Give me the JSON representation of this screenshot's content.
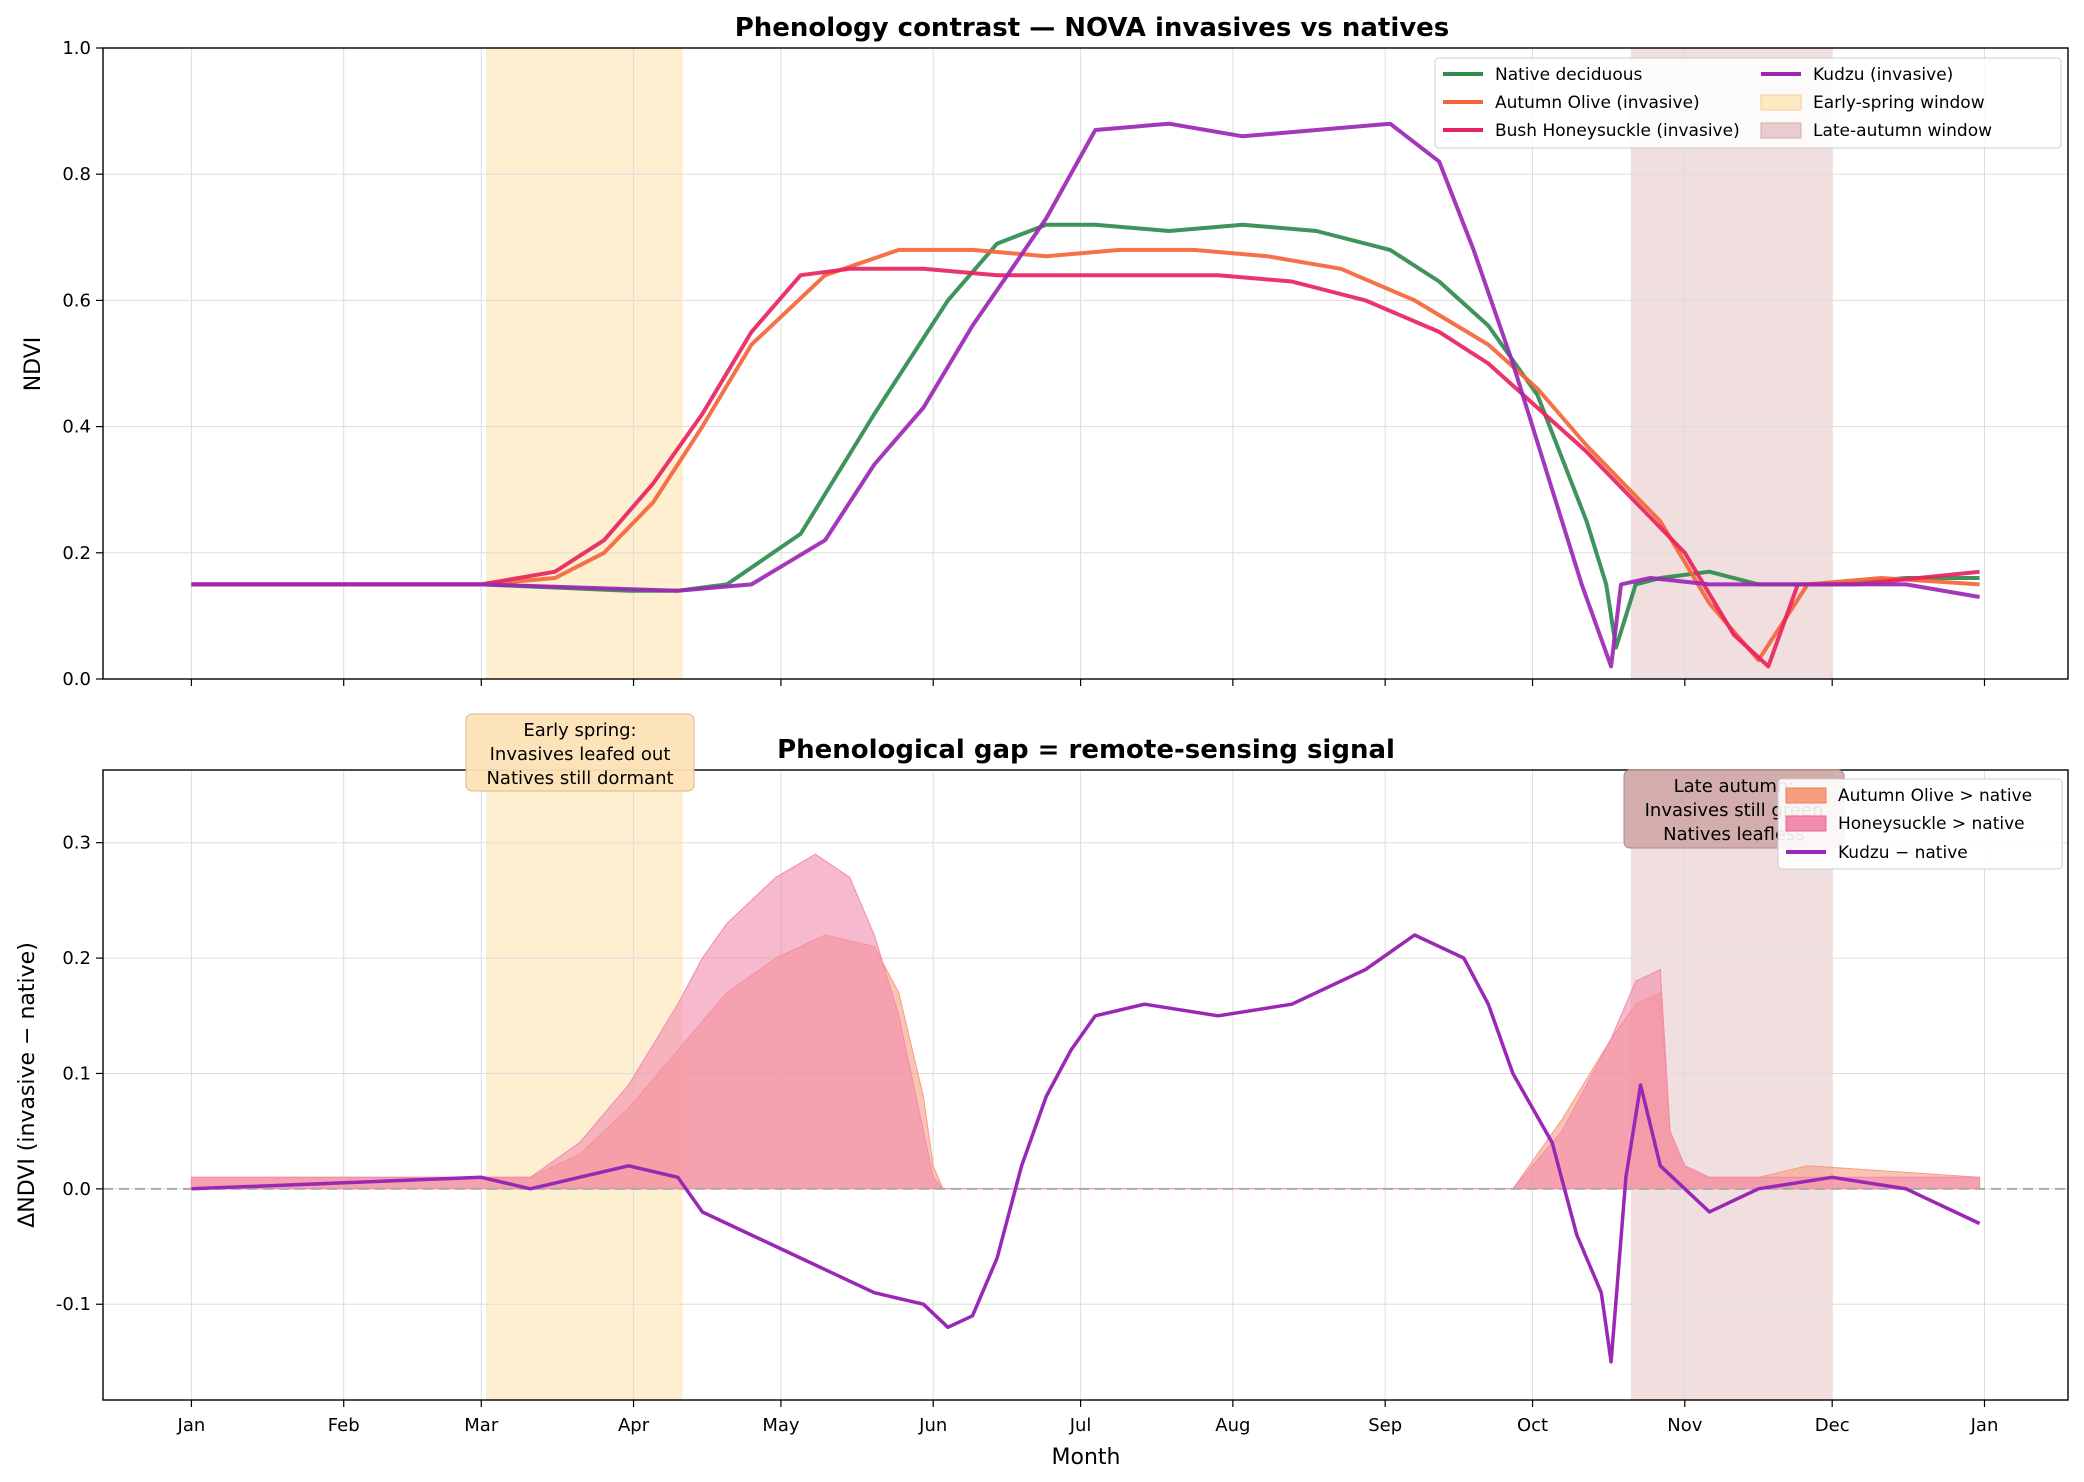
{
  "palette": {
    "native": "#2e8b4e",
    "olive": "#f4663a",
    "honeysuckle": "#e8245e",
    "kudzu": "#9b27b5",
    "early_window": "#fde9c2",
    "late_window": "#e9cdce",
    "olive_fill": "#f79d80",
    "honeysuckle_fill": "#f28bad",
    "zero_line": "#aaaaaa",
    "grid": "#dddddd"
  },
  "chart_data": [
    {
      "id": "top",
      "type": "line",
      "title": "Phenology contrast — NOVA invasives vs natives",
      "xlabel": "",
      "ylabel": "NDVI",
      "x_unit": "day of year (1 = Jan 1, 366 = Jan 1 next year)",
      "xlim": [
        -17,
        383
      ],
      "ylim": [
        0,
        1
      ],
      "y_ticks": [
        0,
        0.2,
        0.4,
        0.6,
        0.8,
        1.0
      ],
      "y_tick_labels": [
        "0.0",
        "0.2",
        "0.4",
        "0.6",
        "0.8",
        "1.0"
      ],
      "grid": true,
      "legend_position": "top-right",
      "legend_columns": 2,
      "shaded_windows": [
        {
          "name": "Early-spring window",
          "start": 61,
          "end": 101
        },
        {
          "name": "Late-autumn window",
          "start": 294,
          "end": 335
        }
      ],
      "series": [
        {
          "name": "Native deciduous",
          "key": "native",
          "x": [
            1,
            60,
            90,
            100,
            110,
            125,
            140,
            155,
            165,
            175,
            185,
            200,
            215,
            230,
            245,
            255,
            265,
            275,
            280,
            285,
            289,
            291,
            295,
            300,
            310,
            320,
            335,
            350,
            365
          ],
          "y": [
            0.15,
            0.15,
            0.14,
            0.14,
            0.15,
            0.23,
            0.42,
            0.6,
            0.69,
            0.72,
            0.72,
            0.71,
            0.72,
            0.71,
            0.68,
            0.63,
            0.56,
            0.45,
            0.35,
            0.25,
            0.15,
            0.05,
            0.15,
            0.16,
            0.17,
            0.15,
            0.15,
            0.16,
            0.16
          ]
        },
        {
          "name": "Autumn Olive (invasive)",
          "key": "olive",
          "x": [
            1,
            60,
            75,
            85,
            95,
            105,
            115,
            130,
            145,
            160,
            175,
            190,
            205,
            220,
            235,
            250,
            265,
            275,
            285,
            295,
            300,
            310,
            320,
            330,
            345,
            365
          ],
          "y": [
            0.15,
            0.15,
            0.16,
            0.2,
            0.28,
            0.4,
            0.53,
            0.64,
            0.68,
            0.68,
            0.67,
            0.68,
            0.68,
            0.67,
            0.65,
            0.6,
            0.53,
            0.46,
            0.37,
            0.29,
            0.25,
            0.12,
            0.03,
            0.15,
            0.16,
            0.15
          ]
        },
        {
          "name": "Bush Honeysuckle (invasive)",
          "key": "honeysuckle",
          "x": [
            1,
            60,
            75,
            85,
            95,
            105,
            115,
            125,
            135,
            150,
            165,
            180,
            195,
            210,
            225,
            240,
            255,
            265,
            275,
            285,
            295,
            305,
            315,
            322,
            328,
            340,
            365
          ],
          "y": [
            0.15,
            0.15,
            0.17,
            0.22,
            0.31,
            0.42,
            0.55,
            0.64,
            0.65,
            0.65,
            0.64,
            0.64,
            0.64,
            0.64,
            0.63,
            0.6,
            0.55,
            0.5,
            0.43,
            0.36,
            0.28,
            0.2,
            0.07,
            0.02,
            0.15,
            0.15,
            0.17
          ]
        },
        {
          "name": "Kudzu (invasive)",
          "key": "kudzu",
          "x": [
            1,
            60,
            100,
            115,
            130,
            140,
            150,
            160,
            168,
            175,
            185,
            200,
            215,
            230,
            245,
            255,
            262,
            270,
            278,
            284,
            290,
            292,
            298,
            310,
            330,
            350,
            365
          ],
          "y": [
            0.15,
            0.15,
            0.14,
            0.15,
            0.22,
            0.34,
            0.43,
            0.56,
            0.65,
            0.73,
            0.87,
            0.88,
            0.86,
            0.87,
            0.88,
            0.82,
            0.68,
            0.5,
            0.3,
            0.15,
            0.02,
            0.15,
            0.16,
            0.15,
            0.15,
            0.15,
            0.13
          ]
        }
      ]
    },
    {
      "id": "bottom",
      "type": "area",
      "title": "Phenological gap = remote-sensing signal",
      "xlabel": "Month",
      "ylabel": "ΔNDVI (invasive − native)",
      "x_unit": "day of year",
      "xlim": [
        -17,
        383
      ],
      "ylim": [
        -0.183,
        0.363
      ],
      "y_ticks": [
        -0.1,
        0.0,
        0.1,
        0.2,
        0.3
      ],
      "y_tick_labels": [
        "-0.1",
        "0.0",
        "0.1",
        "0.2",
        "0.3"
      ],
      "x_ticks": [
        1,
        32,
        60,
        91,
        121,
        152,
        182,
        213,
        244,
        274,
        305,
        335,
        366
      ],
      "x_tick_labels": [
        "Jan",
        "Feb",
        "Mar",
        "Apr",
        "May",
        "Jun",
        "Jul",
        "Aug",
        "Sep",
        "Oct",
        "Nov",
        "Dec",
        "Jan"
      ],
      "grid": true,
      "zero_line": 0,
      "legend_position": "top-right",
      "shaded_windows": [
        {
          "name": "Early-spring window",
          "start": 61,
          "end": 101
        },
        {
          "name": "Late-autumn window",
          "start": 294,
          "end": 335
        }
      ],
      "annotations": [
        {
          "key": "early",
          "lines": [
            "Early spring:",
            "Invasives leafed out",
            "Natives still dormant"
          ]
        },
        {
          "key": "late",
          "lines": [
            "Late autumn:",
            "Invasives still green",
            "Natives leafless"
          ]
        }
      ],
      "series": [
        {
          "name": "Autumn Olive > native",
          "key": "olive_fill",
          "kind": "fill",
          "x": [
            1,
            70,
            80,
            90,
            100,
            110,
            120,
            130,
            140,
            145,
            150,
            152,
            154,
            270,
            280,
            290,
            295,
            300,
            302,
            305,
            310,
            320,
            330,
            365
          ],
          "y": [
            0.01,
            0.01,
            0.03,
            0.07,
            0.12,
            0.17,
            0.2,
            0.22,
            0.21,
            0.17,
            0.08,
            0.02,
            0,
            0,
            0.06,
            0.13,
            0.16,
            0.17,
            0.05,
            0.02,
            0.01,
            0.01,
            0.02,
            0.01
          ]
        },
        {
          "name": "Honeysuckle > native",
          "key": "honeysuckle_fill",
          "kind": "fill",
          "x": [
            1,
            70,
            80,
            90,
            100,
            105,
            110,
            120,
            128,
            135,
            140,
            145,
            150,
            152,
            154,
            270,
            280,
            290,
            295,
            300,
            302,
            305,
            310,
            320,
            330,
            365
          ],
          "y": [
            0.01,
            0.01,
            0.04,
            0.09,
            0.16,
            0.2,
            0.23,
            0.27,
            0.29,
            0.27,
            0.22,
            0.15,
            0.05,
            0.01,
            0,
            0,
            0.05,
            0.13,
            0.18,
            0.19,
            0.05,
            0.02,
            0.01,
            0.01,
            0.01,
            0.01
          ]
        },
        {
          "name": "Kudzu − native",
          "key": "kudzu",
          "kind": "line",
          "x": [
            1,
            60,
            70,
            80,
            90,
            100,
            105,
            110,
            120,
            130,
            140,
            150,
            155,
            160,
            165,
            170,
            175,
            180,
            185,
            195,
            210,
            225,
            240,
            250,
            260,
            265,
            270,
            278,
            283,
            288,
            290,
            293,
            296,
            300,
            305,
            310,
            320,
            335,
            350,
            365
          ],
          "y": [
            0,
            0.01,
            0,
            0.01,
            0.02,
            0.01,
            -0.02,
            -0.03,
            -0.05,
            -0.07,
            -0.09,
            -0.1,
            -0.12,
            -0.11,
            -0.06,
            0.02,
            0.08,
            0.12,
            0.15,
            0.16,
            0.15,
            0.16,
            0.19,
            0.22,
            0.2,
            0.16,
            0.1,
            0.04,
            -0.04,
            -0.09,
            -0.15,
            0.01,
            0.09,
            0.02,
            0,
            -0.02,
            0,
            0.01,
            0,
            -0.03
          ]
        }
      ]
    }
  ]
}
